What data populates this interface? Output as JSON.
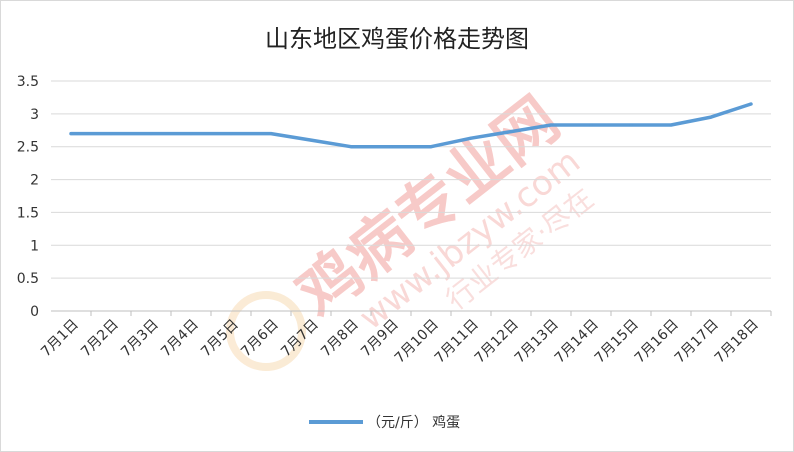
{
  "chart_data": {
    "type": "line",
    "title": "山东地区鸡蛋价格走势图",
    "xlabel": "",
    "ylabel": "",
    "ylim": [
      0,
      3.5
    ],
    "yticks": [
      0,
      0.5,
      1,
      1.5,
      2,
      2.5,
      3,
      3.5
    ],
    "ytick_labels": [
      "0",
      "0.5",
      "1",
      "1.5",
      "2",
      "2.5",
      "3",
      "3.5"
    ],
    "grid": true,
    "legend_position": "bottom",
    "categories": [
      "7月1日",
      "7月2日",
      "7月3日",
      "7月4日",
      "7月5日",
      "7月6日",
      "7月7日",
      "7月8日",
      "7月9日",
      "7月10日",
      "7月11日",
      "7月12日",
      "7月13日",
      "7月14日",
      "7月15日",
      "7月16日",
      "7月17日",
      "7月18日"
    ],
    "series": [
      {
        "name": "（元/斤） 鸡蛋",
        "color": "#5b9bd5",
        "values": [
          2.7,
          2.7,
          2.7,
          2.7,
          2.7,
          2.7,
          2.6,
          2.5,
          2.5,
          2.5,
          2.63,
          2.73,
          2.83,
          2.83,
          2.83,
          2.83,
          2.95,
          3.15
        ]
      }
    ]
  },
  "watermark": {
    "main": "鸡病专业网",
    "url": "www.jbzyw.com",
    "slogan": "行业专家·尽在"
  },
  "colors": {
    "gridline": "#d9d9d9",
    "axis": "#bfbfbf",
    "watermark": "#f2b8b4"
  }
}
